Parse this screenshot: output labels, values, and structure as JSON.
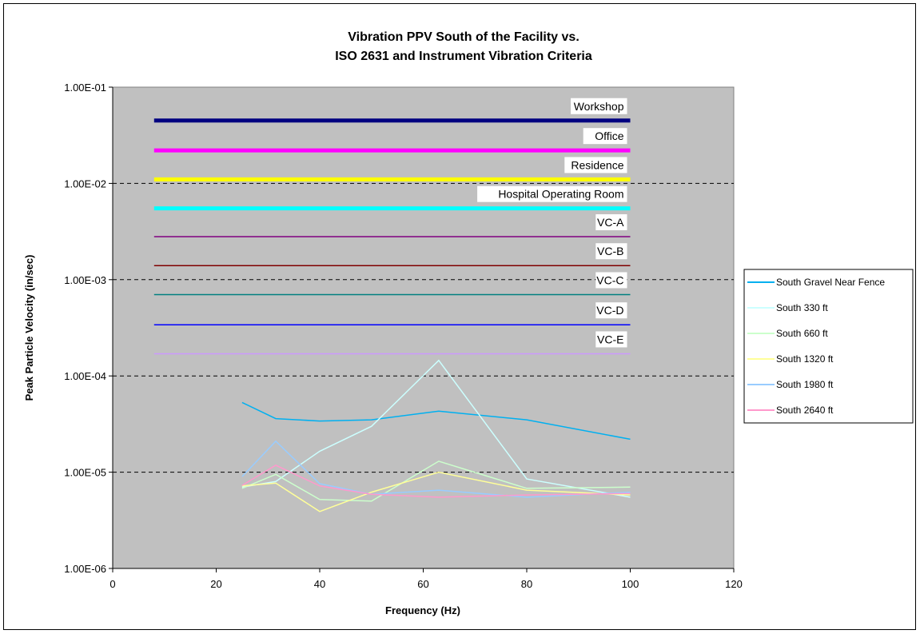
{
  "chart_data": {
    "type": "line",
    "title_line1": "Vibration PPV South of the Facility vs.",
    "title_line2": "ISO 2631 and Instrument Vibration Criteria",
    "xlabel": "Frequency (Hz)",
    "ylabel": "Peak Particle Velocity (in/sec)",
    "xlim": [
      0,
      120
    ],
    "ylim": [
      1e-06,
      0.1
    ],
    "y_scale": "log",
    "x_ticks": [
      "0",
      "20",
      "40",
      "60",
      "80",
      "100",
      "120"
    ],
    "y_ticks": [
      "1.00E-06",
      "1.00E-05",
      "1.00E-04",
      "1.00E-03",
      "1.00E-02",
      "1.00E-01"
    ],
    "plot_background": "#c0c0c0",
    "gridlines": "horizontal dashed at decades",
    "legend_position": "right",
    "criteria": [
      {
        "label": "Workshop",
        "value": 0.045,
        "x": [
          8,
          100
        ],
        "color": "#000080",
        "weight": "thick"
      },
      {
        "label": "Office",
        "value": 0.022,
        "x": [
          8,
          100
        ],
        "color": "#ff00ff",
        "weight": "thick"
      },
      {
        "label": "Residence",
        "value": 0.011,
        "x": [
          8,
          100
        ],
        "color": "#ffff00",
        "weight": "thick"
      },
      {
        "label": "Hospital Operating Room",
        "value": 0.0055,
        "x": [
          8,
          100
        ],
        "color": "#00ffff",
        "weight": "thick"
      },
      {
        "label": "VC-A",
        "value": 0.0028,
        "x": [
          8,
          100
        ],
        "color": "#800080",
        "weight": "thin"
      },
      {
        "label": "VC-B",
        "value": 0.0014,
        "x": [
          8,
          100
        ],
        "color": "#800000",
        "weight": "thin"
      },
      {
        "label": "VC-C",
        "value": 0.0007,
        "x": [
          8,
          100
        ],
        "color": "#008080",
        "weight": "thin"
      },
      {
        "label": "VC-D",
        "value": 0.00034,
        "x": [
          8,
          100
        ],
        "color": "#0000ff",
        "weight": "thin"
      },
      {
        "label": "VC-E",
        "value": 0.00017,
        "x": [
          8,
          100
        ],
        "color": "#cc99ff",
        "weight": "thin"
      }
    ],
    "x": [
      25,
      31.5,
      40,
      50,
      63,
      80,
      100
    ],
    "series": [
      {
        "name": "South Gravel Near Fence",
        "color": "#00b0f0",
        "values": [
          5.3e-05,
          3.6e-05,
          3.4e-05,
          3.5e-05,
          4.3e-05,
          3.5e-05,
          2.2e-05
        ]
      },
      {
        "name": "South 330 ft",
        "color": "#ccffff",
        "values": [
          7e-06,
          8e-06,
          1.65e-05,
          3e-05,
          0.000145,
          8.5e-06,
          5.5e-06
        ]
      },
      {
        "name": "South 660 ft",
        "color": "#ccffcc",
        "values": [
          6.8e-06,
          9.5e-06,
          5.2e-06,
          5e-06,
          1.3e-05,
          6.8e-06,
          7e-06
        ]
      },
      {
        "name": "South 1320 ft",
        "color": "#ffff99",
        "values": [
          7.2e-06,
          7.7e-06,
          3.9e-06,
          6.2e-06,
          1e-05,
          6.5e-06,
          5.8e-06
        ]
      },
      {
        "name": "South 1980 ft",
        "color": "#99ccff",
        "values": [
          9e-06,
          2.1e-05,
          7.6e-06,
          5.9e-06,
          6.5e-06,
          5.5e-06,
          6.2e-06
        ]
      },
      {
        "name": "South 2640 ft",
        "color": "#ff99cc",
        "values": [
          7.3e-06,
          1.18e-05,
          7.2e-06,
          5.9e-06,
          5.5e-06,
          5.8e-06,
          6e-06
        ]
      }
    ]
  }
}
